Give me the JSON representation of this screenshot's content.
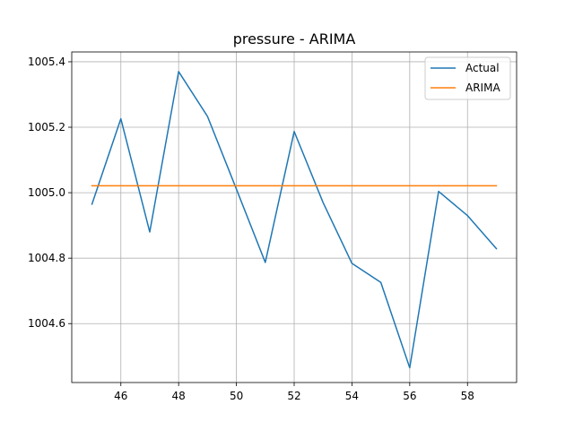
{
  "chart_data": {
    "type": "line",
    "title": "pressure - ARIMA",
    "xlabel": "",
    "ylabel": "",
    "xlim": [
      44.3,
      59.7
    ],
    "ylim": [
      1004.42,
      1005.43
    ],
    "x_ticks": [
      46,
      48,
      50,
      52,
      54,
      56,
      58
    ],
    "y_ticks": [
      1004.6,
      1004.8,
      1005.0,
      1005.2,
      1005.4
    ],
    "y_tick_labels": [
      "1004.6",
      "1004.8",
      "1005.0",
      "1005.2",
      "1005.4"
    ],
    "grid": true,
    "legend_position": "upper right",
    "series": [
      {
        "name": "Actual",
        "color": "#1f77b4",
        "x": [
          45,
          46,
          47,
          48,
          49,
          50,
          51,
          52,
          53,
          54,
          55,
          56,
          57,
          58,
          59
        ],
        "y": [
          1004.965,
          1005.226,
          1004.88,
          1005.37,
          1005.233,
          1005.011,
          1004.787,
          1005.187,
          1004.97,
          1004.784,
          1004.726,
          1004.465,
          1005.004,
          1004.93,
          1004.829
        ]
      },
      {
        "name": "ARIMA",
        "color": "#ff7f0e",
        "x": [
          45,
          46,
          47,
          48,
          49,
          50,
          51,
          52,
          53,
          54,
          55,
          56,
          57,
          58,
          59
        ],
        "y": [
          1005.021,
          1005.021,
          1005.021,
          1005.021,
          1005.021,
          1005.021,
          1005.021,
          1005.021,
          1005.021,
          1005.021,
          1005.021,
          1005.021,
          1005.021,
          1005.021,
          1005.021
        ]
      }
    ]
  }
}
